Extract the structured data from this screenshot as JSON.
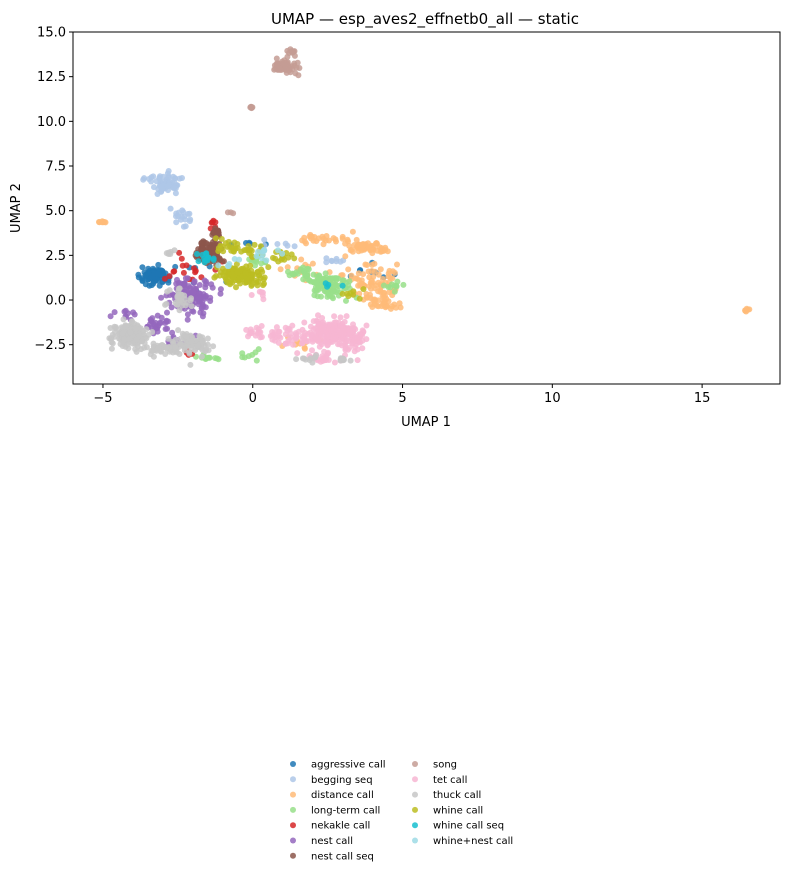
{
  "chart_data": {
    "type": "scatter",
    "title": "UMAP — esp_aves2_effnetb0_all — static",
    "xlabel": "UMAP 1",
    "ylabel": "UMAP 2",
    "xlim": [
      -6.0,
      17.6
    ],
    "ylim": [
      -4.7,
      15.0
    ],
    "xticks": [
      {
        "value": -5,
        "label": "−5"
      },
      {
        "value": 0,
        "label": "0"
      },
      {
        "value": 5,
        "label": "5"
      },
      {
        "value": 10,
        "label": "10"
      },
      {
        "value": 15,
        "label": "15"
      }
    ],
    "yticks": [
      {
        "value": -2.5,
        "label": "−2.5"
      },
      {
        "value": 0.0,
        "label": "0.0"
      },
      {
        "value": 2.5,
        "label": "2.5"
      },
      {
        "value": 5.0,
        "label": "5.0"
      },
      {
        "value": 7.5,
        "label": "7.5"
      },
      {
        "value": 10.0,
        "label": "10.0"
      },
      {
        "value": 12.5,
        "label": "12.5"
      },
      {
        "value": 15.0,
        "label": "15.0"
      }
    ],
    "grid": false,
    "legend_placement": "lower center, two columns",
    "series": [
      {
        "name": "aggressive call",
        "color": "#1f77b4",
        "clusters": [
          [
            -3.3,
            1.3,
            0.4,
            0.45,
            90
          ],
          [
            0.2,
            3.0,
            0.8,
            0.3,
            6
          ],
          [
            3.8,
            1.5,
            0.6,
            0.6,
            8
          ],
          [
            -2.0,
            1.5,
            0.8,
            0.8,
            10
          ]
        ]
      },
      {
        "name": "begging seq",
        "color": "#aec7e8",
        "clusters": [
          [
            -2.8,
            6.5,
            0.35,
            0.45,
            60
          ],
          [
            -2.3,
            4.6,
            0.25,
            0.45,
            18
          ],
          [
            -3.5,
            6.8,
            0.2,
            0.15,
            6
          ],
          [
            2.6,
            2.2,
            0.4,
            0.15,
            8
          ],
          [
            0.9,
            3.1,
            0.5,
            0.2,
            6
          ]
        ]
      },
      {
        "name": "distance call",
        "color": "#ffbb78",
        "clusters": [
          [
            3.8,
            2.9,
            0.6,
            0.25,
            60
          ],
          [
            3.9,
            1.0,
            0.7,
            0.8,
            80
          ],
          [
            4.4,
            -0.2,
            0.5,
            0.5,
            30
          ],
          [
            2.3,
            3.4,
            0.7,
            0.25,
            25
          ],
          [
            1.7,
            1.7,
            0.5,
            0.5,
            15
          ],
          [
            -5.0,
            4.35,
            0.1,
            0.06,
            8
          ],
          [
            16.5,
            -0.55,
            0.08,
            0.06,
            6
          ],
          [
            2.0,
            -2.5,
            1.0,
            0.5,
            10
          ]
        ]
      },
      {
        "name": "long-term call",
        "color": "#98df8a",
        "clusters": [
          [
            2.5,
            0.8,
            0.6,
            0.6,
            90
          ],
          [
            1.7,
            1.5,
            0.4,
            0.3,
            25
          ],
          [
            0.2,
            2.2,
            0.4,
            0.3,
            12
          ],
          [
            -1.6,
            -3.2,
            0.5,
            0.15,
            12
          ],
          [
            4.6,
            0.8,
            0.4,
            0.3,
            10
          ],
          [
            -0.2,
            -3.1,
            0.3,
            0.2,
            8
          ]
        ]
      },
      {
        "name": "nekakle call",
        "color": "#d62728",
        "clusters": [
          [
            -2.0,
            1.5,
            0.7,
            0.8,
            20
          ],
          [
            -1.4,
            4.3,
            0.2,
            0.2,
            6
          ],
          [
            -2.1,
            -3.0,
            0.2,
            0.2,
            6
          ]
        ]
      },
      {
        "name": "nest call",
        "color": "#9467bd",
        "clusters": [
          [
            -2.1,
            0.2,
            0.55,
            0.75,
            130
          ],
          [
            -3.2,
            -1.4,
            0.5,
            0.4,
            30
          ],
          [
            -2.5,
            -2.4,
            0.4,
            0.4,
            15
          ],
          [
            -4.3,
            -0.8,
            0.3,
            0.3,
            10
          ]
        ]
      },
      {
        "name": "nest call seq",
        "color": "#8c564b",
        "clusters": [
          [
            -1.4,
            2.7,
            0.3,
            0.55,
            110
          ],
          [
            -1.2,
            3.8,
            0.15,
            0.3,
            20
          ]
        ]
      },
      {
        "name": "song",
        "color": "#c49c94",
        "clusters": [
          [
            1.1,
            13.1,
            0.35,
            0.3,
            60
          ],
          [
            1.3,
            13.9,
            0.1,
            0.2,
            10
          ],
          [
            -0.05,
            10.8,
            0.08,
            0.05,
            8
          ],
          [
            -0.7,
            4.9,
            0.1,
            0.08,
            3
          ]
        ]
      },
      {
        "name": "tet call",
        "color": "#f7b6d2",
        "clusters": [
          [
            2.5,
            -1.8,
            0.7,
            0.7,
            180
          ],
          [
            3.3,
            -2.0,
            0.4,
            0.6,
            60
          ],
          [
            1.1,
            -2.0,
            0.6,
            0.45,
            40
          ],
          [
            0.1,
            -1.8,
            0.35,
            0.35,
            15
          ],
          [
            2.3,
            -3.2,
            0.6,
            0.3,
            25
          ],
          [
            0.2,
            0.3,
            0.2,
            0.2,
            6
          ]
        ]
      },
      {
        "name": "thuck call",
        "color": "#c7c7c7",
        "clusters": [
          [
            -4.1,
            -2.0,
            0.5,
            0.65,
            150
          ],
          [
            -3.0,
            -2.7,
            0.5,
            0.3,
            60
          ],
          [
            -2.0,
            -2.4,
            0.5,
            0.5,
            80
          ],
          [
            -2.4,
            0.0,
            0.4,
            0.7,
            30
          ],
          [
            -2.8,
            2.6,
            0.2,
            0.15,
            6
          ],
          [
            1.8,
            -3.3,
            0.4,
            0.2,
            10
          ],
          [
            3.0,
            -3.3,
            0.3,
            0.15,
            10
          ]
        ]
      },
      {
        "name": "whine call",
        "color": "#bcbd22",
        "clusters": [
          [
            -0.3,
            1.4,
            0.55,
            0.4,
            130
          ],
          [
            -0.4,
            2.8,
            0.5,
            0.3,
            25
          ],
          [
            0.9,
            2.5,
            0.4,
            0.3,
            15
          ],
          [
            -1.0,
            3.1,
            0.3,
            0.3,
            10
          ],
          [
            3.2,
            0.4,
            0.4,
            0.3,
            8
          ]
        ]
      },
      {
        "name": "whine call seq",
        "color": "#17becf",
        "clusters": [
          [
            -1.5,
            2.3,
            0.25,
            0.3,
            15
          ],
          [
            2.7,
            0.9,
            0.2,
            0.2,
            4
          ]
        ]
      },
      {
        "name": "whine+nest call",
        "color": "#9edae5",
        "clusters": [
          [
            0.5,
            2.6,
            0.4,
            0.3,
            12
          ],
          [
            -0.8,
            2.0,
            0.3,
            0.3,
            6
          ]
        ]
      }
    ],
    "cluster_fields": [
      "x_center",
      "y_center",
      "x_spread",
      "y_spread",
      "approx_count"
    ]
  }
}
